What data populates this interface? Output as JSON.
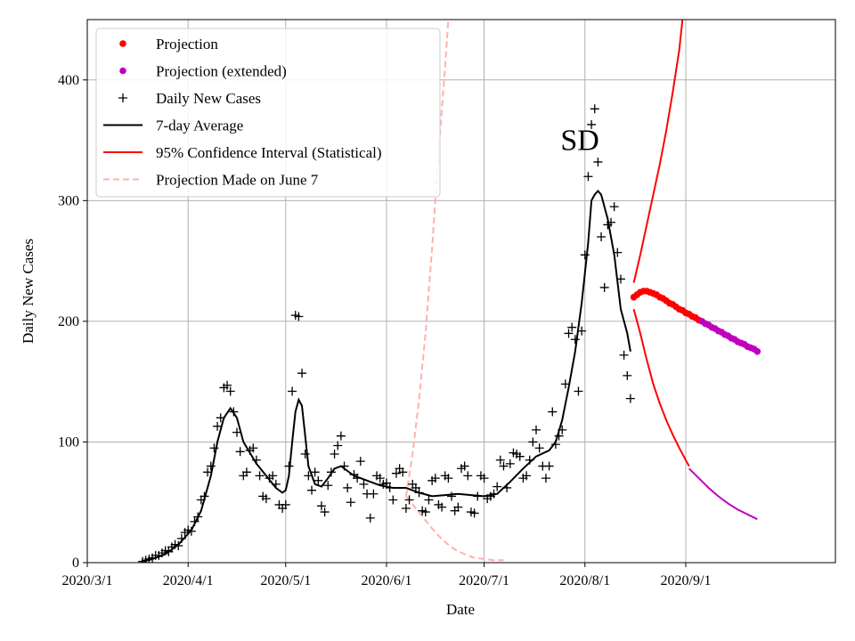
{
  "chart_data": {
    "type": "scatter",
    "title": "",
    "xlabel": "Date",
    "ylabel": "Daily New Cases",
    "annotation": "SD",
    "ylim": [
      0,
      450
    ],
    "xlim_day": [
      0,
      230
    ],
    "x_ticks": [
      {
        "day": 0,
        "label": "2020/3/1"
      },
      {
        "day": 31,
        "label": "2020/4/1"
      },
      {
        "day": 61,
        "label": "2020/5/1"
      },
      {
        "day": 92,
        "label": "2020/6/1"
      },
      {
        "day": 122,
        "label": "2020/7/1"
      },
      {
        "day": 153,
        "label": "2020/8/1"
      },
      {
        "day": 184,
        "label": "2020/9/1"
      }
    ],
    "y_ticks": [
      0,
      100,
      200,
      300,
      400
    ],
    "grid": true,
    "legend": {
      "position": "top-left",
      "entries": [
        {
          "key": "projection",
          "label": "Projection",
          "marker": "dot",
          "color": "#ff0000"
        },
        {
          "key": "projection_ext",
          "label": "Projection (extended)",
          "marker": "dot",
          "color": "#bf00bf"
        },
        {
          "key": "daily",
          "label": "Daily New Cases",
          "marker": "plus",
          "color": "#000000"
        },
        {
          "key": "avg",
          "label": "7-day Average",
          "marker": "line",
          "color": "#000000"
        },
        {
          "key": "ci",
          "label": "95% Confidence Interval (Statistical)",
          "marker": "line",
          "color": "#ff0000"
        },
        {
          "key": "june7",
          "label": "Projection Made on June 7",
          "marker": "dashed",
          "color": "#ffb0b0"
        }
      ]
    },
    "series": [
      {
        "name": "Daily New Cases",
        "kind": "scatter-plus",
        "color": "#000000",
        "points": [
          [
            17,
            1
          ],
          [
            18,
            2
          ],
          [
            19,
            3
          ],
          [
            20,
            4
          ],
          [
            21,
            6
          ],
          [
            22,
            6
          ],
          [
            23,
            8
          ],
          [
            24,
            10
          ],
          [
            25,
            9
          ],
          [
            26,
            13
          ],
          [
            27,
            15
          ],
          [
            28,
            14
          ],
          [
            29,
            20
          ],
          [
            30,
            25
          ],
          [
            31,
            27
          ],
          [
            32,
            26
          ],
          [
            33,
            34
          ],
          [
            34,
            38
          ],
          [
            35,
            52
          ],
          [
            36,
            55
          ],
          [
            37,
            75
          ],
          [
            38,
            80
          ],
          [
            39,
            95
          ],
          [
            40,
            113
          ],
          [
            41,
            120
          ],
          [
            42,
            145
          ],
          [
            43,
            147
          ],
          [
            44,
            142
          ],
          [
            45,
            125
          ],
          [
            46,
            108
          ],
          [
            47,
            92
          ],
          [
            48,
            72
          ],
          [
            49,
            75
          ],
          [
            50,
            93
          ],
          [
            51,
            95
          ],
          [
            52,
            85
          ],
          [
            53,
            72
          ],
          [
            54,
            55
          ],
          [
            55,
            53
          ],
          [
            56,
            70
          ],
          [
            57,
            72
          ],
          [
            58,
            65
          ],
          [
            59,
            48
          ],
          [
            60,
            45
          ],
          [
            61,
            48
          ],
          [
            62,
            80
          ],
          [
            63,
            142
          ],
          [
            64,
            205
          ],
          [
            65,
            204
          ],
          [
            66,
            157
          ],
          [
            67,
            90
          ],
          [
            68,
            72
          ],
          [
            69,
            60
          ],
          [
            70,
            75
          ],
          [
            71,
            68
          ],
          [
            72,
            47
          ],
          [
            73,
            42
          ],
          [
            74,
            64
          ],
          [
            75,
            75
          ],
          [
            76,
            90
          ],
          [
            77,
            97
          ],
          [
            78,
            105
          ],
          [
            79,
            80
          ],
          [
            80,
            62
          ],
          [
            81,
            50
          ],
          [
            82,
            73
          ],
          [
            83,
            70
          ],
          [
            84,
            84
          ],
          [
            85,
            65
          ],
          [
            86,
            57
          ],
          [
            87,
            37
          ],
          [
            88,
            57
          ],
          [
            89,
            72
          ],
          [
            90,
            70
          ],
          [
            91,
            65
          ],
          [
            92,
            66
          ],
          [
            93,
            62
          ],
          [
            94,
            52
          ],
          [
            95,
            74
          ],
          [
            96,
            78
          ],
          [
            97,
            75
          ],
          [
            98,
            45
          ],
          [
            99,
            52
          ],
          [
            100,
            65
          ],
          [
            101,
            62
          ],
          [
            102,
            58
          ],
          [
            103,
            43
          ],
          [
            104,
            42
          ],
          [
            105,
            52
          ],
          [
            106,
            68
          ],
          [
            107,
            70
          ],
          [
            108,
            48
          ],
          [
            109,
            46
          ],
          [
            110,
            72
          ],
          [
            111,
            70
          ],
          [
            112,
            55
          ],
          [
            113,
            43
          ],
          [
            114,
            46
          ],
          [
            115,
            78
          ],
          [
            116,
            80
          ],
          [
            117,
            72
          ],
          [
            118,
            42
          ],
          [
            119,
            41
          ],
          [
            120,
            55
          ],
          [
            121,
            72
          ],
          [
            122,
            70
          ],
          [
            123,
            53
          ],
          [
            124,
            55
          ],
          [
            125,
            57
          ],
          [
            126,
            63
          ],
          [
            127,
            85
          ],
          [
            128,
            80
          ],
          [
            129,
            62
          ],
          [
            130,
            82
          ],
          [
            131,
            91
          ],
          [
            132,
            90
          ],
          [
            133,
            88
          ],
          [
            134,
            70
          ],
          [
            135,
            72
          ],
          [
            136,
            85
          ],
          [
            137,
            100
          ],
          [
            138,
            110
          ],
          [
            139,
            95
          ],
          [
            140,
            80
          ],
          [
            141,
            70
          ],
          [
            142,
            80
          ],
          [
            143,
            125
          ],
          [
            144,
            98
          ],
          [
            145,
            105
          ],
          [
            146,
            110
          ],
          [
            147,
            148
          ],
          [
            148,
            190
          ],
          [
            149,
            195
          ],
          [
            150,
            185
          ],
          [
            151,
            142
          ],
          [
            152,
            192
          ],
          [
            153,
            255
          ],
          [
            154,
            320
          ],
          [
            155,
            363
          ],
          [
            156,
            376
          ],
          [
            157,
            332
          ],
          [
            158,
            270
          ],
          [
            159,
            228
          ],
          [
            160,
            280
          ],
          [
            161,
            282
          ],
          [
            162,
            295
          ],
          [
            163,
            257
          ],
          [
            164,
            235
          ],
          [
            165,
            172
          ],
          [
            166,
            155
          ],
          [
            167,
            136
          ]
        ]
      },
      {
        "name": "7-day Average",
        "kind": "line",
        "color": "#000000",
        "points": [
          [
            17,
            1
          ],
          [
            20,
            3
          ],
          [
            24,
            7
          ],
          [
            28,
            15
          ],
          [
            32,
            27
          ],
          [
            35,
            43
          ],
          [
            38,
            72
          ],
          [
            40,
            100
          ],
          [
            42,
            120
          ],
          [
            44,
            128
          ],
          [
            46,
            120
          ],
          [
            48,
            100
          ],
          [
            52,
            82
          ],
          [
            55,
            72
          ],
          [
            58,
            62
          ],
          [
            60,
            58
          ],
          [
            61,
            60
          ],
          [
            62,
            72
          ],
          [
            63,
            100
          ],
          [
            64,
            125
          ],
          [
            65,
            135
          ],
          [
            66,
            130
          ],
          [
            67,
            105
          ],
          [
            68,
            80
          ],
          [
            70,
            65
          ],
          [
            72,
            63
          ],
          [
            74,
            70
          ],
          [
            76,
            78
          ],
          [
            78,
            80
          ],
          [
            80,
            76
          ],
          [
            82,
            72
          ],
          [
            84,
            70
          ],
          [
            86,
            68
          ],
          [
            90,
            64
          ],
          [
            94,
            62
          ],
          [
            98,
            62
          ],
          [
            102,
            58
          ],
          [
            106,
            55
          ],
          [
            110,
            56
          ],
          [
            114,
            57
          ],
          [
            118,
            56
          ],
          [
            122,
            55
          ],
          [
            126,
            57
          ],
          [
            130,
            67
          ],
          [
            134,
            78
          ],
          [
            138,
            88
          ],
          [
            142,
            93
          ],
          [
            144,
            100
          ],
          [
            146,
            118
          ],
          [
            148,
            145
          ],
          [
            150,
            175
          ],
          [
            152,
            215
          ],
          [
            154,
            265
          ],
          [
            155,
            300
          ],
          [
            156,
            305
          ],
          [
            157,
            308
          ],
          [
            158,
            305
          ],
          [
            160,
            285
          ],
          [
            162,
            255
          ],
          [
            164,
            210
          ],
          [
            166,
            190
          ],
          [
            167,
            175
          ]
        ]
      },
      {
        "name": "Projection",
        "kind": "scatter-dot",
        "color": "#ff0000",
        "points": [
          [
            168,
            220
          ],
          [
            169,
            222
          ],
          [
            170,
            224
          ],
          [
            171,
            225
          ],
          [
            172,
            225
          ],
          [
            173,
            224
          ],
          [
            174,
            223
          ],
          [
            175,
            222
          ],
          [
            176,
            220
          ],
          [
            177,
            219
          ],
          [
            178,
            217
          ],
          [
            179,
            215
          ],
          [
            180,
            214
          ],
          [
            181,
            212
          ],
          [
            182,
            210
          ],
          [
            183,
            209
          ],
          [
            184,
            207
          ],
          [
            185,
            206
          ],
          [
            186,
            204
          ],
          [
            187,
            203
          ],
          [
            188,
            201
          ]
        ]
      },
      {
        "name": "Projection (extended)",
        "kind": "scatter-dot",
        "color": "#bf00bf",
        "points": [
          [
            189,
            200
          ],
          [
            190,
            198
          ],
          [
            191,
            197
          ],
          [
            192,
            195
          ],
          [
            193,
            194
          ],
          [
            194,
            192
          ],
          [
            195,
            191
          ],
          [
            196,
            189
          ],
          [
            197,
            188
          ],
          [
            198,
            186
          ],
          [
            199,
            185
          ],
          [
            200,
            183
          ],
          [
            201,
            182
          ],
          [
            202,
            181
          ],
          [
            203,
            179
          ],
          [
            204,
            178
          ],
          [
            205,
            177
          ],
          [
            206,
            175
          ]
        ]
      },
      {
        "name": "95% CI upper",
        "kind": "line",
        "color": "#ff0000",
        "points": [
          [
            168,
            232
          ],
          [
            170,
            255
          ],
          [
            172,
            280
          ],
          [
            174,
            305
          ],
          [
            176,
            330
          ],
          [
            178,
            358
          ],
          [
            180,
            390
          ],
          [
            182,
            425
          ],
          [
            183,
            450
          ]
        ]
      },
      {
        "name": "95% CI lower",
        "kind": "line",
        "color": "#ff0000",
        "points": [
          [
            168,
            210
          ],
          [
            170,
            190
          ],
          [
            172,
            168
          ],
          [
            174,
            148
          ],
          [
            176,
            132
          ],
          [
            178,
            118
          ],
          [
            180,
            106
          ],
          [
            182,
            95
          ],
          [
            184,
            85
          ],
          [
            185,
            80
          ]
        ]
      },
      {
        "name": "95% CI lower (extended)",
        "kind": "line",
        "color": "#bf00bf",
        "points": [
          [
            185,
            78
          ],
          [
            188,
            70
          ],
          [
            191,
            62
          ],
          [
            194,
            55
          ],
          [
            197,
            49
          ],
          [
            200,
            44
          ],
          [
            203,
            40
          ],
          [
            206,
            36
          ]
        ]
      },
      {
        "name": "Projection Made on June 7",
        "kind": "dashed",
        "color": "#ffb0b0",
        "up": [
          [
            98,
            55
          ],
          [
            100,
            90
          ],
          [
            102,
            135
          ],
          [
            104,
            190
          ],
          [
            106,
            260
          ],
          [
            108,
            340
          ],
          [
            110,
            410
          ],
          [
            111,
            450
          ]
        ],
        "down": [
          [
            98,
            55
          ],
          [
            101,
            45
          ],
          [
            104,
            35
          ],
          [
            107,
            25
          ],
          [
            110,
            17
          ],
          [
            113,
            11
          ],
          [
            116,
            7
          ],
          [
            119,
            4
          ],
          [
            122,
            3
          ],
          [
            125,
            2
          ],
          [
            128,
            2
          ]
        ]
      }
    ]
  }
}
